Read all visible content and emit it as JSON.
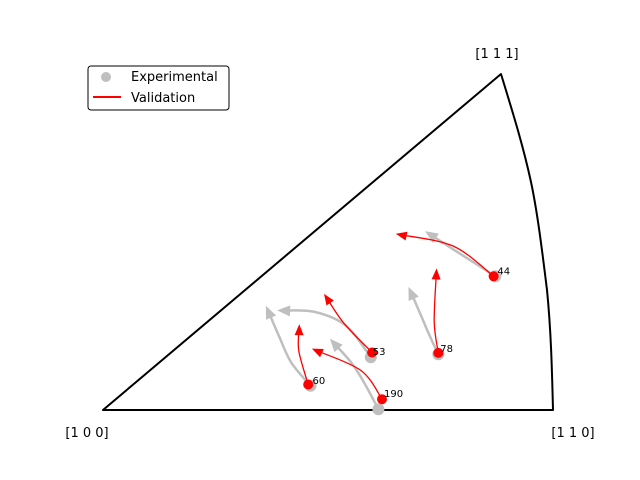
{
  "chart_data": {
    "type": "scatter",
    "title": "",
    "corner_labels": {
      "bottom_left": "[1 0 0]",
      "bottom_right": "[1 1 0]",
      "top": "[1 1 1]"
    },
    "legend": {
      "placement": "top-left",
      "entries": [
        {
          "label": "Experimental",
          "marker": "circle",
          "color": "#bfbfbf"
        },
        {
          "label": "Validation",
          "marker": "line",
          "color": "#ff0000"
        }
      ]
    },
    "series": [
      {
        "name": "Experimental",
        "color": "#bfbfbf",
        "grains": [
          {
            "id": "44",
            "path": [
              [
                0.872,
                0.398
              ],
              [
                0.83,
                0.434
              ],
              [
                0.776,
                0.48
              ],
              [
                0.724,
                0.525
              ]
            ]
          },
          {
            "id": "78",
            "path": [
              [
                0.745,
                0.166
              ],
              [
                0.722,
                0.233
              ],
              [
                0.703,
                0.293
              ],
              [
                0.683,
                0.354
              ]
            ]
          },
          {
            "id": "53",
            "path": [
              [
                0.595,
                0.157
              ],
              [
                0.54,
                0.251
              ],
              [
                0.47,
                0.292
              ],
              [
                0.397,
                0.296
              ]
            ]
          },
          {
            "id": "60",
            "path": [
              [
                0.461,
                0.072
              ],
              [
                0.418,
                0.142
              ],
              [
                0.391,
                0.22
              ],
              [
                0.366,
                0.298
              ]
            ]
          },
          {
            "id": "190",
            "path": [
              [
                0.612,
                0.002
              ],
              [
                0.581,
                0.08
              ],
              [
                0.551,
                0.142
              ],
              [
                0.511,
                0.202
              ]
            ]
          }
        ]
      },
      {
        "name": "Validation",
        "color": "#ff0000",
        "grains": [
          {
            "id": "44",
            "path": [
              [
                0.868,
                0.398
              ],
              [
                0.778,
                0.488
              ],
              [
                0.659,
                0.522
              ]
            ]
          },
          {
            "id": "78",
            "path": [
              [
                0.745,
                0.17
              ],
              [
                0.736,
                0.263
              ],
              [
                0.741,
                0.41
              ]
            ]
          },
          {
            "id": "53",
            "path": [
              [
                0.598,
                0.171
              ],
              [
                0.536,
                0.257
              ],
              [
                0.496,
                0.336
              ]
            ]
          },
          {
            "id": "60",
            "path": [
              [
                0.456,
                0.076
              ],
              [
                0.435,
                0.176
              ],
              [
                0.436,
                0.244
              ]
            ]
          },
          {
            "id": "190",
            "path": [
              [
                0.62,
                0.032
              ],
              [
                0.573,
                0.118
              ],
              [
                0.472,
                0.178
              ]
            ]
          }
        ]
      }
    ],
    "annotations": [
      {
        "text": "44",
        "at": [
          0.872,
          0.398
        ]
      },
      {
        "text": "78",
        "at": [
          0.745,
          0.166
        ]
      },
      {
        "text": "53",
        "at": [
          0.595,
          0.157
        ]
      },
      {
        "text": "60",
        "at": [
          0.461,
          0.072
        ]
      },
      {
        "text": "190",
        "at": [
          0.62,
          0.032
        ]
      }
    ],
    "axes": "off",
    "grid": false
  }
}
